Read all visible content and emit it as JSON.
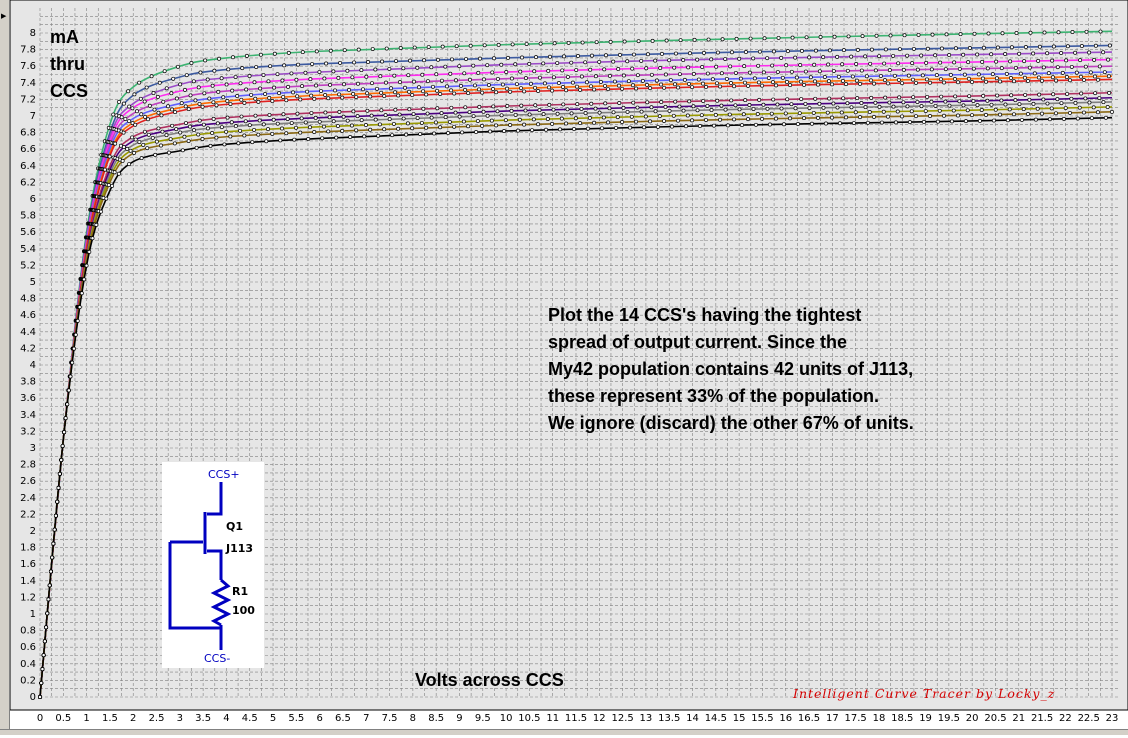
{
  "chart_data": {
    "type": "line",
    "title": "",
    "xlabel": "Volts across CCS",
    "ylabel": "mA\nthru\nCCS",
    "xlim": [
      0,
      23
    ],
    "ylim": [
      0,
      8.2
    ],
    "x_ticks": [
      "0",
      "0.5",
      "1",
      "1.5",
      "2",
      "2.5",
      "3",
      "3.5",
      "4",
      "4.5",
      "5",
      "5.5",
      "6",
      "6.5",
      "7",
      "7.5",
      "8",
      "8.5",
      "9",
      "9.5",
      "10",
      "10.5",
      "11",
      "11.5",
      "12",
      "12.5",
      "13",
      "13.5",
      "14",
      "14.5",
      "15",
      "15.5",
      "16",
      "16.5",
      "17",
      "17.5",
      "18",
      "18.5",
      "19",
      "19.5",
      "20",
      "20.5",
      "21",
      "21.5",
      "22",
      "22.5",
      "23"
    ],
    "y_ticks": [
      "0",
      "0.2",
      "0.4",
      "0.6",
      "0.8",
      "1",
      "1.2",
      "1.4",
      "1.6",
      "1.8",
      "2",
      "2.2",
      "2.4",
      "2.6",
      "2.8",
      "3",
      "3.2",
      "3.4",
      "3.6",
      "3.8",
      "4",
      "4.2",
      "4.4",
      "4.6",
      "4.8",
      "5",
      "5.2",
      "5.4",
      "5.6",
      "5.8",
      "6",
      "6.2",
      "6.4",
      "6.6",
      "6.8",
      "7",
      "7.2",
      "7.4",
      "7.6",
      "7.8",
      "8"
    ],
    "grid": true,
    "series": [
      {
        "color": "#3cb371",
        "values": [
          [
            0,
            0
          ],
          [
            0.5,
            3.1
          ],
          [
            1,
            5.6
          ],
          [
            1.5,
            6.9
          ],
          [
            2,
            7.35
          ],
          [
            3,
            7.6
          ],
          [
            4,
            7.7
          ],
          [
            6,
            7.78
          ],
          [
            10,
            7.86
          ],
          [
            15,
            7.93
          ],
          [
            20,
            7.99
          ],
          [
            23,
            8.02
          ]
        ]
      },
      {
        "color": "#3c5aa0",
        "values": [
          [
            0,
            0
          ],
          [
            0.5,
            3.1
          ],
          [
            1,
            5.55
          ],
          [
            1.5,
            6.8
          ],
          [
            2,
            7.25
          ],
          [
            3,
            7.47
          ],
          [
            4,
            7.56
          ],
          [
            6,
            7.63
          ],
          [
            10,
            7.7
          ],
          [
            15,
            7.77
          ],
          [
            20,
            7.82
          ],
          [
            23,
            7.85
          ]
        ]
      },
      {
        "color": "#9b4bc8",
        "values": [
          [
            0,
            0
          ],
          [
            0.5,
            3.1
          ],
          [
            1,
            5.52
          ],
          [
            1.5,
            6.75
          ],
          [
            2,
            7.15
          ],
          [
            3,
            7.38
          ],
          [
            4,
            7.46
          ],
          [
            6,
            7.53
          ],
          [
            10,
            7.62
          ],
          [
            15,
            7.69
          ],
          [
            20,
            7.74
          ],
          [
            23,
            7.77
          ]
        ]
      },
      {
        "color": "#ff2cf0",
        "values": [
          [
            0,
            0
          ],
          [
            0.5,
            3.1
          ],
          [
            1,
            5.5
          ],
          [
            1.5,
            6.7
          ],
          [
            2,
            7.1
          ],
          [
            3,
            7.3
          ],
          [
            4,
            7.38
          ],
          [
            6,
            7.45
          ],
          [
            10,
            7.53
          ],
          [
            15,
            7.6
          ],
          [
            20,
            7.65
          ],
          [
            23,
            7.68
          ]
        ]
      },
      {
        "color": "#c040c0",
        "values": [
          [
            0,
            0
          ],
          [
            0.5,
            3.1
          ],
          [
            1,
            5.48
          ],
          [
            1.5,
            6.65
          ],
          [
            2,
            7.03
          ],
          [
            3,
            7.22
          ],
          [
            4,
            7.3
          ],
          [
            6,
            7.37
          ],
          [
            10,
            7.45
          ],
          [
            15,
            7.52
          ],
          [
            20,
            7.57
          ],
          [
            23,
            7.6
          ]
        ]
      },
      {
        "color": "#6060ff",
        "values": [
          [
            0,
            0
          ],
          [
            0.5,
            3.1
          ],
          [
            1,
            5.45
          ],
          [
            1.5,
            6.6
          ],
          [
            2,
            6.97
          ],
          [
            3,
            7.15
          ],
          [
            4,
            7.23
          ],
          [
            6,
            7.3
          ],
          [
            10,
            7.38
          ],
          [
            15,
            7.45
          ],
          [
            20,
            7.5
          ],
          [
            23,
            7.53
          ]
        ]
      },
      {
        "color": "#ff6a00",
        "values": [
          [
            0,
            0
          ],
          [
            0.5,
            3.1
          ],
          [
            1,
            5.43
          ],
          [
            1.5,
            6.55
          ],
          [
            2,
            6.92
          ],
          [
            3,
            7.1
          ],
          [
            4,
            7.18
          ],
          [
            6,
            7.25
          ],
          [
            10,
            7.33
          ],
          [
            15,
            7.4
          ],
          [
            20,
            7.45
          ],
          [
            23,
            7.48
          ]
        ]
      },
      {
        "color": "#e02020",
        "values": [
          [
            0,
            0
          ],
          [
            0.5,
            3.1
          ],
          [
            1,
            5.4
          ],
          [
            1.5,
            6.52
          ],
          [
            2,
            6.88
          ],
          [
            3,
            7.06
          ],
          [
            4,
            7.14
          ],
          [
            6,
            7.21
          ],
          [
            10,
            7.29
          ],
          [
            15,
            7.36
          ],
          [
            20,
            7.41
          ],
          [
            23,
            7.44
          ]
        ]
      },
      {
        "color": "#b03060",
        "values": [
          [
            0,
            0
          ],
          [
            0.5,
            3.1
          ],
          [
            1,
            5.35
          ],
          [
            1.5,
            6.4
          ],
          [
            2,
            6.75
          ],
          [
            3,
            6.9
          ],
          [
            4,
            6.98
          ],
          [
            6,
            7.04
          ],
          [
            10,
            7.12
          ],
          [
            15,
            7.19
          ],
          [
            20,
            7.24
          ],
          [
            23,
            7.28
          ]
        ]
      },
      {
        "color": "#4b0082",
        "values": [
          [
            0,
            0
          ],
          [
            0.5,
            3.1
          ],
          [
            1,
            5.32
          ],
          [
            1.5,
            6.35
          ],
          [
            2,
            6.7
          ],
          [
            3,
            6.85
          ],
          [
            4,
            6.92
          ],
          [
            6,
            6.98
          ],
          [
            10,
            7.06
          ],
          [
            15,
            7.13
          ],
          [
            20,
            7.18
          ],
          [
            23,
            7.22
          ]
        ]
      },
      {
        "color": "#808080",
        "values": [
          [
            0,
            0
          ],
          [
            0.5,
            3.1
          ],
          [
            1,
            5.3
          ],
          [
            1.5,
            6.3
          ],
          [
            2,
            6.65
          ],
          [
            3,
            6.8
          ],
          [
            4,
            6.87
          ],
          [
            6,
            6.93
          ],
          [
            10,
            7.01
          ],
          [
            15,
            7.08
          ],
          [
            20,
            7.13
          ],
          [
            23,
            7.17
          ]
        ]
      },
      {
        "color": "#9a9a00",
        "values": [
          [
            0,
            0
          ],
          [
            0.5,
            3.1
          ],
          [
            1,
            5.28
          ],
          [
            1.5,
            6.25
          ],
          [
            2,
            6.6
          ],
          [
            3,
            6.74
          ],
          [
            4,
            6.81
          ],
          [
            6,
            6.87
          ],
          [
            10,
            6.95
          ],
          [
            15,
            7.02
          ],
          [
            20,
            7.07
          ],
          [
            23,
            7.11
          ]
        ]
      },
      {
        "color": "#8b6914",
        "values": [
          [
            0,
            0
          ],
          [
            0.5,
            3.1
          ],
          [
            1,
            5.25
          ],
          [
            1.5,
            6.2
          ],
          [
            2,
            6.55
          ],
          [
            3,
            6.68
          ],
          [
            4,
            6.75
          ],
          [
            6,
            6.81
          ],
          [
            10,
            6.89
          ],
          [
            15,
            6.96
          ],
          [
            20,
            7.01
          ],
          [
            23,
            7.05
          ]
        ]
      },
      {
        "color": "#000000",
        "values": [
          [
            0,
            0
          ],
          [
            0.5,
            3.1
          ],
          [
            1,
            5.2
          ],
          [
            1.5,
            6.1
          ],
          [
            2,
            6.45
          ],
          [
            3,
            6.58
          ],
          [
            4,
            6.66
          ],
          [
            6,
            6.73
          ],
          [
            10,
            6.82
          ],
          [
            15,
            6.89
          ],
          [
            20,
            6.94
          ],
          [
            23,
            6.98
          ]
        ]
      }
    ],
    "annotation": "Plot the 14 CCS's having the tightest\nspread of output current.  Since the\nMy42 population contains 42 units of J113,\nthese represent 33% of the population.\nWe ignore (discard) the other 67% of units.",
    "watermark": "Intelligent Curve Tracer by Locky_z"
  },
  "schematic": {
    "top_label": "CCS+",
    "bottom_label": "CCS-",
    "q_label": "Q1",
    "q_part": "J113",
    "r_label": "R1",
    "r_value": "100"
  },
  "colors": {
    "plot_background": "#e6e6e6",
    "grid": "#808080",
    "schematic_wire": "#0000c0",
    "watermark": "#d40000"
  }
}
